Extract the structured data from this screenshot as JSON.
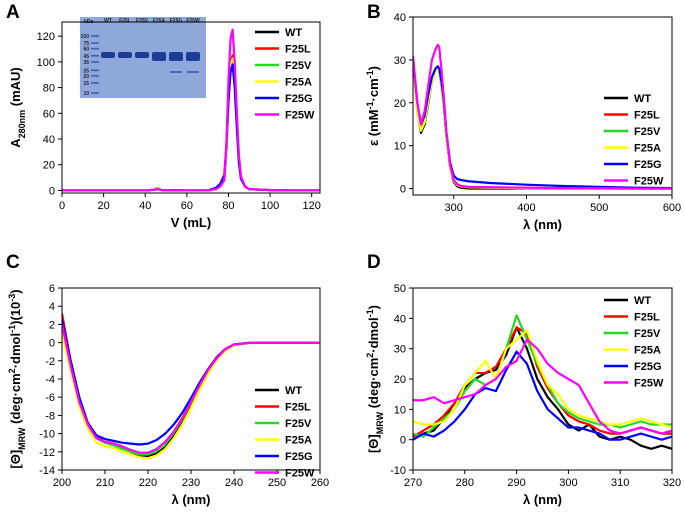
{
  "chart_data": [
    {
      "type": "line",
      "panel": "A",
      "ylabel": [
        "A",
        {
          "text": "280nm",
          "script": "sub"
        },
        " (mAU)"
      ],
      "xlabel": "V (mL)",
      "xlim": [
        0,
        124
      ],
      "xticks": [
        0,
        20,
        40,
        60,
        80,
        100,
        120
      ],
      "ylim": [
        -2,
        131
      ],
      "yticks": [
        0,
        20,
        40,
        60,
        80,
        100,
        120
      ],
      "inset": {
        "unit": "kDa",
        "markers": [
          100,
          75,
          60,
          45,
          35,
          25,
          20,
          15,
          10
        ],
        "lanes": [
          "WT",
          "F25L",
          "F25V",
          "F25A",
          "F25G",
          "F25W"
        ]
      },
      "x": [
        0,
        20,
        40,
        44,
        46,
        48,
        60,
        70,
        74,
        76,
        78,
        79,
        80,
        81,
        82,
        83,
        84,
        85,
        86,
        88,
        90,
        100,
        110,
        124
      ],
      "series": [
        {
          "name": "WT",
          "color": "#000000",
          "values": [
            0,
            0,
            0,
            0.5,
            1,
            0.3,
            0,
            0,
            1,
            3,
            8,
            30,
            70,
            95,
            100,
            85,
            55,
            25,
            10,
            3,
            1,
            0.3,
            0,
            0
          ]
        },
        {
          "name": "F25L",
          "color": "#ff0000",
          "values": [
            0,
            0,
            0,
            0.5,
            1.5,
            0.3,
            0,
            0,
            1,
            3,
            8,
            32,
            75,
            100,
            105,
            88,
            57,
            26,
            10,
            3,
            1,
            0.3,
            0,
            0
          ]
        },
        {
          "name": "F25V",
          "color": "#22dd22",
          "values": [
            0,
            0,
            0,
            0.5,
            2,
            0.3,
            0,
            0,
            1,
            3,
            8,
            31,
            73,
            98,
            103,
            86,
            56,
            25,
            10,
            3,
            1,
            0.3,
            0,
            0
          ]
        },
        {
          "name": "F25A",
          "color": "#ffff00",
          "values": [
            0,
            0,
            0,
            0.5,
            1.5,
            0.3,
            0,
            0,
            1,
            3,
            8,
            30,
            72,
            97,
            102,
            86,
            55,
            25,
            10,
            3,
            1,
            0.3,
            0,
            0
          ]
        },
        {
          "name": "F25G",
          "color": "#0000ff",
          "values": [
            0,
            0,
            0,
            0.5,
            1,
            0.3,
            0,
            0,
            2,
            5,
            12,
            35,
            70,
            92,
            98,
            80,
            50,
            22,
            9,
            3,
            1,
            0.3,
            0,
            0
          ]
        },
        {
          "name": "F25W",
          "color": "#ff00ff",
          "values": [
            0,
            0,
            0,
            0.5,
            1,
            0.3,
            0,
            0,
            1,
            3,
            8,
            35,
            85,
            118,
            125,
            100,
            62,
            28,
            11,
            3,
            1,
            0.3,
            0,
            0
          ]
        }
      ]
    },
    {
      "type": "line",
      "panel": "B",
      "ylabel": [
        "ε (mM",
        {
          "text": "-1",
          "script": "sup"
        },
        "·cm",
        {
          "text": "-1",
          "script": "sup"
        },
        ")"
      ],
      "xlabel": "λ (nm)",
      "xlim": [
        244,
        600
      ],
      "xticks": [
        300,
        400,
        500,
        600
      ],
      "ylim": [
        -1.5,
        40
      ],
      "yticks": [
        0,
        10,
        20,
        30,
        40
      ],
      "x": [
        244,
        250,
        255,
        260,
        265,
        270,
        275,
        278,
        280,
        283,
        286,
        290,
        295,
        300,
        305,
        310,
        320,
        350,
        400,
        450,
        500,
        550,
        600
      ],
      "series": [
        {
          "name": "WT",
          "color": "#000000",
          "values": [
            30,
            18,
            13,
            15,
            20,
            25,
            27.5,
            28,
            27.5,
            24,
            20,
            12,
            5,
            1.5,
            0.5,
            0.2,
            0,
            0,
            0,
            0,
            0,
            0,
            0
          ]
        },
        {
          "name": "F25L",
          "color": "#ff0000",
          "values": [
            30,
            19,
            14,
            16,
            21,
            25.5,
            27.8,
            28.2,
            27.8,
            24,
            20,
            12,
            5,
            1.8,
            0.8,
            0.5,
            0.3,
            0.2,
            0.1,
            0.1,
            0,
            0,
            0
          ]
        },
        {
          "name": "F25V",
          "color": "#22dd22",
          "values": [
            29,
            18,
            13.5,
            15.5,
            20.5,
            25,
            27.5,
            28,
            27.5,
            24,
            20,
            12,
            5,
            1.8,
            0.8,
            0.5,
            0.3,
            0.2,
            0.1,
            0.1,
            0,
            0,
            0
          ]
        },
        {
          "name": "F25A",
          "color": "#ffff00",
          "values": [
            29,
            18,
            13.5,
            15.5,
            20.5,
            25,
            27.5,
            28,
            27.5,
            24,
            20,
            12,
            5,
            1.8,
            0.8,
            0.5,
            0.3,
            0.2,
            0.1,
            0.1,
            0,
            0,
            0
          ]
        },
        {
          "name": "F25G",
          "color": "#0000ff",
          "values": [
            30,
            20,
            15,
            17,
            22,
            26,
            28,
            28.5,
            28,
            25,
            21,
            13,
            6,
            3,
            2.2,
            2,
            1.7,
            1.3,
            0.9,
            0.6,
            0.4,
            0.2,
            0.1
          ]
        },
        {
          "name": "F25W",
          "color": "#ff00ff",
          "values": [
            31,
            20,
            15,
            18,
            24,
            30,
            32.5,
            33.5,
            33,
            28,
            22,
            13,
            5.5,
            2,
            1,
            0.6,
            0.4,
            0.3,
            0.2,
            0.1,
            0.1,
            0,
            0
          ]
        }
      ]
    },
    {
      "type": "line",
      "panel": "C",
      "ylabel": [
        "[Θ]",
        {
          "text": "MRW",
          "script": "sub"
        },
        " (deg·cm",
        {
          "text": "2",
          "script": "sup"
        },
        "·dmol",
        {
          "text": "-1",
          "script": "sup"
        },
        ")(10",
        {
          "text": "-3",
          "script": "sup"
        },
        ")"
      ],
      "xlabel": "λ (nm)",
      "xlim": [
        200,
        260
      ],
      "xticks": [
        200,
        210,
        220,
        230,
        240,
        250,
        260
      ],
      "ylim": [
        -14,
        6
      ],
      "yticks": [
        -14,
        -12,
        -10,
        -8,
        -6,
        -4,
        -2,
        0,
        2,
        4,
        6
      ],
      "x": [
        200,
        202,
        204,
        206,
        208,
        210,
        212,
        214,
        216,
        218,
        220,
        222,
        224,
        226,
        228,
        230,
        232,
        234,
        236,
        238,
        240,
        244,
        250,
        260
      ],
      "series": [
        {
          "name": "WT",
          "color": "#000000",
          "values": [
            3,
            -2,
            -6,
            -9,
            -10.5,
            -11,
            -11.2,
            -11.6,
            -12,
            -12.4,
            -12.5,
            -12.2,
            -11.5,
            -10.3,
            -8.8,
            -7,
            -5,
            -3.2,
            -1.8,
            -0.8,
            -0.3,
            0,
            0,
            0
          ]
        },
        {
          "name": "F25L",
          "color": "#ff0000",
          "values": [
            3.2,
            -2,
            -6,
            -9,
            -10.4,
            -10.9,
            -11.1,
            -11.5,
            -11.9,
            -12.2,
            -12.2,
            -11.8,
            -11,
            -9.8,
            -8.3,
            -6.5,
            -4.6,
            -3,
            -1.6,
            -0.7,
            -0.2,
            0,
            0,
            0
          ]
        },
        {
          "name": "F25V",
          "color": "#22dd22",
          "values": [
            2,
            -2.5,
            -6.5,
            -9,
            -10.5,
            -11,
            -11.3,
            -11.7,
            -12,
            -12.3,
            -12.3,
            -11.9,
            -11.1,
            -9.9,
            -8.4,
            -6.6,
            -4.7,
            -3,
            -1.7,
            -0.7,
            -0.2,
            0,
            0,
            0
          ]
        },
        {
          "name": "F25A",
          "color": "#ffff00",
          "values": [
            1,
            -3,
            -7,
            -9.5,
            -11,
            -11.4,
            -11.6,
            -12,
            -12.3,
            -12.6,
            -12.7,
            -12.4,
            -11.7,
            -10.5,
            -9,
            -7.2,
            -5.2,
            -3.4,
            -1.9,
            -0.9,
            -0.3,
            0,
            0,
            0
          ]
        },
        {
          "name": "F25G",
          "color": "#0000ff",
          "values": [
            2.5,
            -2,
            -6,
            -8.8,
            -10.2,
            -10.6,
            -10.8,
            -11,
            -11.1,
            -11.2,
            -11.1,
            -10.7,
            -10,
            -9,
            -7.7,
            -6.1,
            -4.4,
            -2.9,
            -1.6,
            -0.7,
            -0.2,
            0,
            0,
            0
          ]
        },
        {
          "name": "F25W",
          "color": "#ff00ff",
          "values": [
            2,
            -2.5,
            -6.5,
            -9,
            -10.5,
            -10.9,
            -11.1,
            -11.4,
            -11.8,
            -12.1,
            -12.1,
            -11.7,
            -10.9,
            -9.8,
            -8.3,
            -6.5,
            -4.7,
            -3,
            -1.7,
            -0.7,
            -0.2,
            0,
            0,
            0
          ]
        }
      ]
    },
    {
      "type": "line",
      "panel": "D",
      "ylabel": [
        "[Θ]",
        {
          "text": "MRW",
          "script": "sub"
        },
        " (deg·cm",
        {
          "text": "2",
          "script": "sup"
        },
        "·dmol",
        {
          "text": "-1",
          "script": "sup"
        },
        ")"
      ],
      "xlabel": "λ (nm)",
      "xlim": [
        270,
        320
      ],
      "xticks": [
        270,
        280,
        290,
        300,
        310,
        320
      ],
      "ylim": [
        -10,
        50
      ],
      "yticks": [
        -10,
        0,
        10,
        20,
        30,
        40,
        50
      ],
      "x": [
        270,
        272,
        274,
        276,
        278,
        280,
        282,
        284,
        286,
        288,
        290,
        292,
        294,
        296,
        298,
        300,
        302,
        304,
        306,
        308,
        310,
        312,
        314,
        316,
        318,
        320
      ],
      "series": [
        {
          "name": "WT",
          "color": "#000000",
          "values": [
            0,
            2,
            3,
            7,
            12,
            17,
            20,
            22,
            23,
            28,
            37,
            30,
            20,
            14,
            10,
            5,
            3,
            5,
            1,
            0,
            1,
            0,
            -2,
            -3,
            -2,
            -3
          ]
        },
        {
          "name": "F25L",
          "color": "#ff0000",
          "values": [
            1,
            3,
            5,
            8,
            12,
            18,
            22,
            22,
            24,
            30,
            37,
            35,
            24,
            17,
            12,
            8,
            6,
            5,
            3,
            2,
            2,
            3,
            4,
            3,
            2,
            2
          ]
        },
        {
          "name": "F25V",
          "color": "#22dd22",
          "values": [
            2,
            1,
            4,
            7,
            10,
            16,
            20,
            18,
            20,
            30,
            41,
            33,
            25,
            18,
            12,
            9,
            7,
            6,
            5,
            5,
            4,
            5,
            6,
            5,
            5,
            5
          ]
        },
        {
          "name": "F25A",
          "color": "#ffff00",
          "values": [
            6,
            5,
            5,
            6,
            10,
            18,
            22,
            26,
            20,
            30,
            33,
            36,
            26,
            18,
            15,
            10,
            8,
            7,
            6,
            5,
            5,
            6,
            7,
            6,
            5,
            4
          ]
        },
        {
          "name": "F25G",
          "color": "#0000ff",
          "values": [
            0,
            2,
            1,
            3,
            6,
            10,
            15,
            17,
            16,
            23,
            29,
            25,
            16,
            10,
            7,
            4,
            4,
            3,
            2,
            0,
            0,
            1,
            2,
            1,
            0,
            1
          ]
        },
        {
          "name": "F25W",
          "color": "#ff00ff",
          "values": [
            13,
            13,
            14,
            12,
            13,
            14,
            15,
            18,
            20,
            24,
            26,
            33,
            30,
            25,
            22,
            20,
            18,
            12,
            6,
            3,
            2,
            3,
            4,
            3,
            2,
            3
          ]
        }
      ]
    }
  ]
}
